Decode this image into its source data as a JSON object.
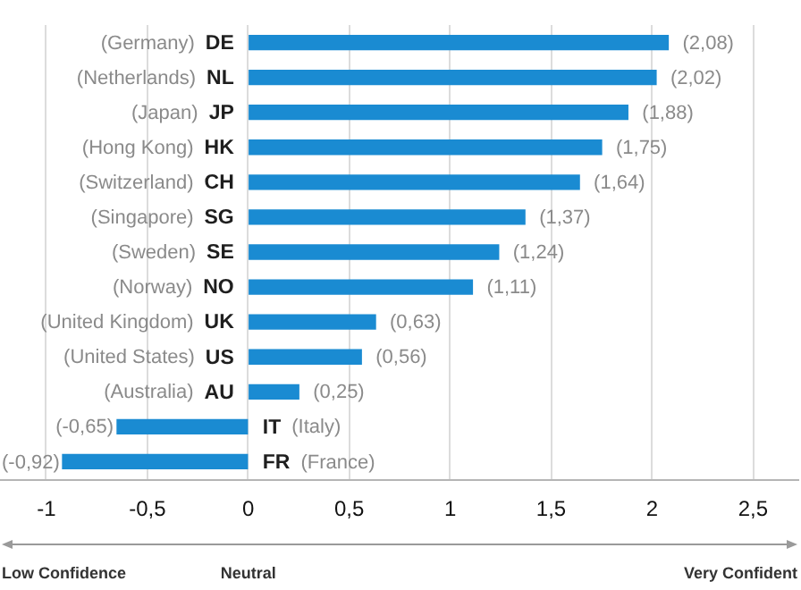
{
  "chart_data": {
    "type": "bar",
    "orientation": "horizontal",
    "categories": [
      "(Germany) DE",
      "(Netherlands) NL",
      "(Japan) JP",
      "(Hong Kong) HK",
      "(Switzerland) CH",
      "(Singapore) SG",
      "(Sweden) SE",
      "(Norway) NO",
      "(United Kingdom) UK",
      "(United States) US",
      "(Australia) AU",
      "IT (Italy)",
      "FR (France)"
    ],
    "values": [
      2.08,
      2.02,
      1.88,
      1.75,
      1.64,
      1.37,
      1.24,
      1.11,
      0.63,
      0.56,
      0.25,
      -0.65,
      -0.92
    ],
    "value_labels": [
      "(2,08)",
      "(2,02)",
      "(1,88)",
      "(1,75)",
      "(1,64)",
      "(1,37)",
      "(1,24)",
      "(1,11)",
      "(0,63)",
      "(0,56)",
      "(0,25)",
      "(-0,65)",
      "(-0,92)"
    ],
    "color": "#1a8bd2",
    "xlim": [
      -1.23,
      2.72
    ],
    "xticks": [
      -1,
      {
        "value": -0.5,
        "label": "-0,5"
      },
      0,
      {
        "value": 0.5,
        "label": "0,5"
      },
      1,
      {
        "value": 1.5,
        "label": "1,5"
      },
      2,
      {
        "value": 2.5,
        "label": "2,5"
      }
    ],
    "grid": "x",
    "annotations": [
      "Low Confidence",
      "Neutral",
      "Very Confident"
    ]
  }
}
